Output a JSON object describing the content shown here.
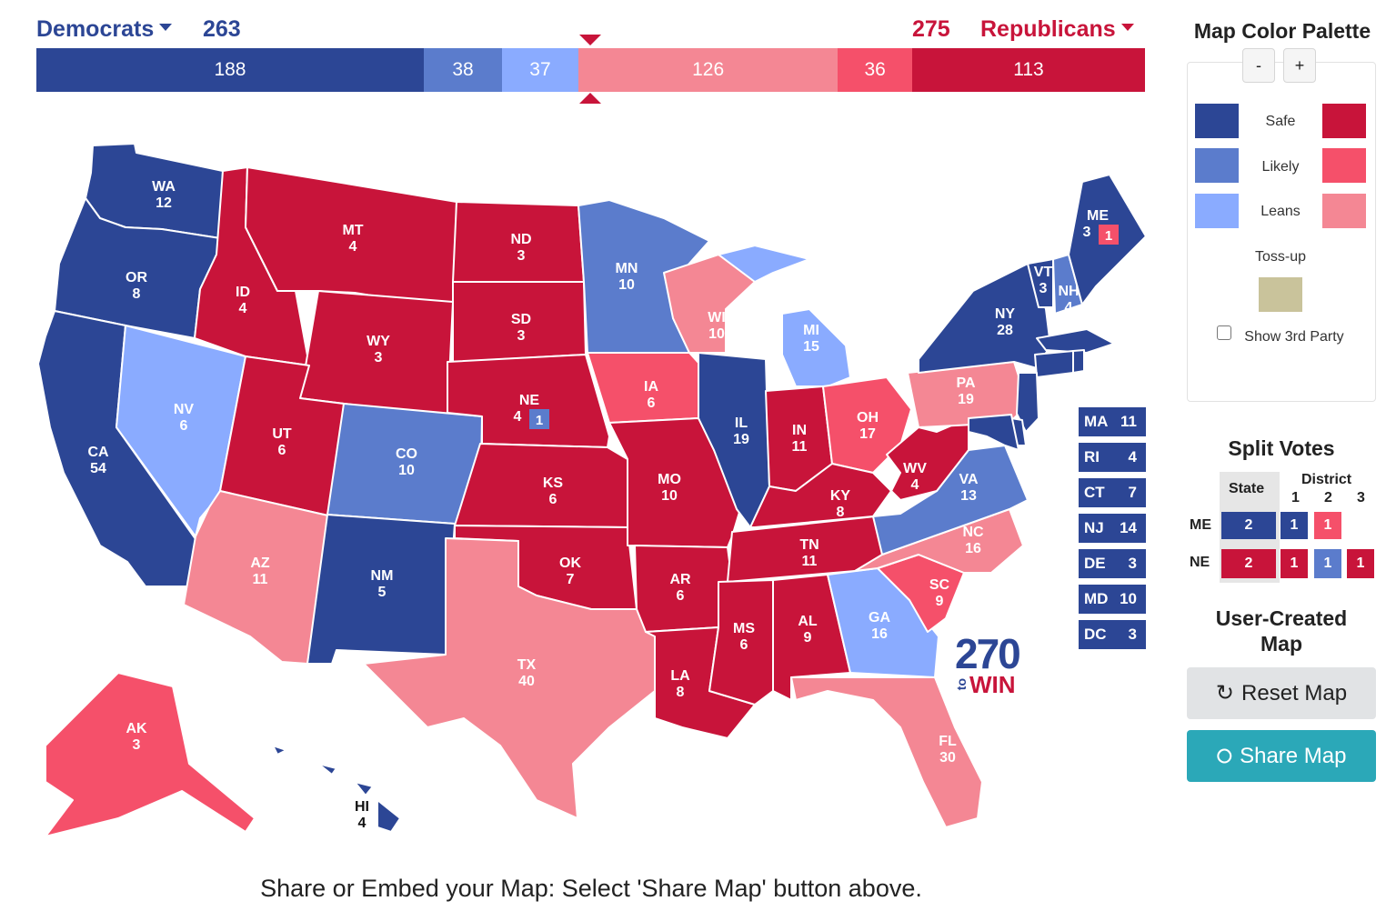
{
  "header": {
    "dem_label": "Democrats",
    "dem_total": "263",
    "rep_total": "275",
    "rep_label": "Republicans"
  },
  "bar": [
    {
      "value": 188,
      "color": "#2c4695"
    },
    {
      "value": 38,
      "color": "#5b7ccc"
    },
    {
      "value": 37,
      "color": "#8aabff"
    },
    {
      "value": 126,
      "color": "#f48794"
    },
    {
      "value": 36,
      "color": "#f5506a"
    },
    {
      "value": 113,
      "color": "#c8143a"
    }
  ],
  "bar_labels": [
    "188",
    "38",
    "37",
    "126",
    "36",
    "113"
  ],
  "colors": {
    "safe_dem": "#2c4695",
    "likely_dem": "#5b7ccc",
    "lean_dem": "#8aabff",
    "safe_rep": "#c8143a",
    "likely_rep": "#f5506a",
    "lean_rep": "#f48794",
    "tossup": "#c9c39b"
  },
  "states": {
    "WA": {
      "abbr": "WA",
      "ev": "12",
      "rating": "safe_dem"
    },
    "OR": {
      "abbr": "OR",
      "ev": "8",
      "rating": "safe_dem"
    },
    "CA": {
      "abbr": "CA",
      "ev": "54",
      "rating": "safe_dem"
    },
    "NV": {
      "abbr": "NV",
      "ev": "6",
      "rating": "lean_dem"
    },
    "ID": {
      "abbr": "ID",
      "ev": "4",
      "rating": "safe_rep"
    },
    "MT": {
      "abbr": "MT",
      "ev": "4",
      "rating": "safe_rep"
    },
    "WY": {
      "abbr": "WY",
      "ev": "3",
      "rating": "safe_rep"
    },
    "UT": {
      "abbr": "UT",
      "ev": "6",
      "rating": "safe_rep"
    },
    "AZ": {
      "abbr": "AZ",
      "ev": "11",
      "rating": "lean_rep"
    },
    "CO": {
      "abbr": "CO",
      "ev": "10",
      "rating": "likely_dem"
    },
    "NM": {
      "abbr": "NM",
      "ev": "5",
      "rating": "safe_dem"
    },
    "ND": {
      "abbr": "ND",
      "ev": "3",
      "rating": "safe_rep"
    },
    "SD": {
      "abbr": "SD",
      "ev": "3",
      "rating": "safe_rep"
    },
    "NE": {
      "abbr": "NE",
      "ev": "4",
      "rating": "safe_rep"
    },
    "KS": {
      "abbr": "KS",
      "ev": "6",
      "rating": "safe_rep"
    },
    "OK": {
      "abbr": "OK",
      "ev": "7",
      "rating": "safe_rep"
    },
    "TX": {
      "abbr": "TX",
      "ev": "40",
      "rating": "lean_rep"
    },
    "MN": {
      "abbr": "MN",
      "ev": "10",
      "rating": "likely_dem"
    },
    "IA": {
      "abbr": "IA",
      "ev": "6",
      "rating": "likely_rep"
    },
    "MO": {
      "abbr": "MO",
      "ev": "10",
      "rating": "safe_rep"
    },
    "AR": {
      "abbr": "AR",
      "ev": "6",
      "rating": "safe_rep"
    },
    "LA": {
      "abbr": "LA",
      "ev": "8",
      "rating": "safe_rep"
    },
    "WI": {
      "abbr": "WI",
      "ev": "10",
      "rating": "lean_rep"
    },
    "IL": {
      "abbr": "IL",
      "ev": "19",
      "rating": "safe_dem"
    },
    "MI": {
      "abbr": "MI",
      "ev": "15",
      "rating": "lean_dem"
    },
    "IN": {
      "abbr": "IN",
      "ev": "11",
      "rating": "safe_rep"
    },
    "OH": {
      "abbr": "OH",
      "ev": "17",
      "rating": "likely_rep"
    },
    "KY": {
      "abbr": "KY",
      "ev": "8",
      "rating": "safe_rep"
    },
    "TN": {
      "abbr": "TN",
      "ev": "11",
      "rating": "safe_rep"
    },
    "MS": {
      "abbr": "MS",
      "ev": "6",
      "rating": "safe_rep"
    },
    "AL": {
      "abbr": "AL",
      "ev": "9",
      "rating": "safe_rep"
    },
    "GA": {
      "abbr": "GA",
      "ev": "16",
      "rating": "lean_dem"
    },
    "FL": {
      "abbr": "FL",
      "ev": "30",
      "rating": "lean_rep"
    },
    "SC": {
      "abbr": "SC",
      "ev": "9",
      "rating": "likely_rep"
    },
    "NC": {
      "abbr": "NC",
      "ev": "16",
      "rating": "lean_rep"
    },
    "VA": {
      "abbr": "VA",
      "ev": "13",
      "rating": "likely_dem"
    },
    "WV": {
      "abbr": "WV",
      "ev": "4",
      "rating": "safe_rep"
    },
    "PA": {
      "abbr": "PA",
      "ev": "19",
      "rating": "lean_rep"
    },
    "NY": {
      "abbr": "NY",
      "ev": "28",
      "rating": "safe_dem"
    },
    "VT": {
      "abbr": "VT",
      "ev": "3",
      "rating": "safe_dem"
    },
    "NH": {
      "abbr": "NH",
      "ev": "4",
      "rating": "likely_dem"
    },
    "ME": {
      "abbr": "ME",
      "ev": "3",
      "rating": "safe_dem"
    },
    "AK": {
      "abbr": "AK",
      "ev": "3",
      "rating": "likely_rep"
    },
    "HI": {
      "abbr": "HI",
      "ev": "4",
      "rating": "safe_dem"
    }
  },
  "me_district_badge": "1",
  "ne_district_badge": "1",
  "small_states": [
    {
      "abbr": "MA",
      "ev": "11"
    },
    {
      "abbr": "RI",
      "ev": "4"
    },
    {
      "abbr": "CT",
      "ev": "7"
    },
    {
      "abbr": "NJ",
      "ev": "14"
    },
    {
      "abbr": "DE",
      "ev": "3"
    },
    {
      "abbr": "MD",
      "ev": "10"
    },
    {
      "abbr": "DC",
      "ev": "3"
    }
  ],
  "logo": {
    "num": "270",
    "to": "to",
    "win": "WIN"
  },
  "palette": {
    "title": "Map Color Palette",
    "minus": "-",
    "plus": "+",
    "safe": "Safe",
    "likely": "Likely",
    "leans": "Leans",
    "tossup": "Toss-up",
    "third_party": "Show 3rd Party"
  },
  "split": {
    "title": "Split Votes",
    "state_header": "State",
    "district_header": "District",
    "d1": "1",
    "d2": "2",
    "d3": "3",
    "me": {
      "label": "ME",
      "state": "2",
      "d1": "1",
      "d2": "1"
    },
    "ne": {
      "label": "NE",
      "state": "2",
      "d1": "1",
      "d2": "1",
      "d3": "1"
    }
  },
  "user_map": {
    "title_line1": "User-Created",
    "title_line2": "Map"
  },
  "buttons": {
    "reset": "Reset Map",
    "share": "Share Map"
  },
  "footer": "Share or Embed your Map: Select 'Share Map' button above."
}
